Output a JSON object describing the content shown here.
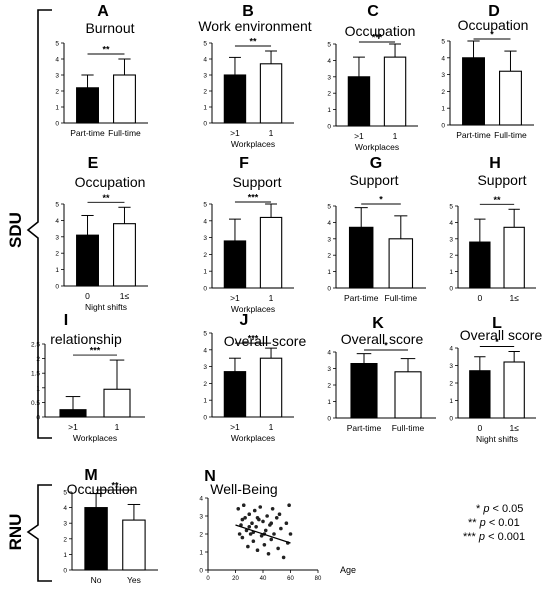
{
  "groups": [
    {
      "label": "SDU"
    },
    {
      "label": "RNU"
    }
  ],
  "legend": {
    "p05": {
      "stars": "*",
      "p": "p",
      "rest": "< 0.05"
    },
    "p01": {
      "stars": "**",
      "p": "p",
      "rest": "< 0.01"
    },
    "p001": {
      "stars": "***",
      "p": "p",
      "rest": "< 0.001"
    }
  },
  "chart_data": [
    {
      "panel": "A",
      "title": "Burnout",
      "type": "bar",
      "categories": [
        "Part-time",
        "Full-time"
      ],
      "values": [
        2.2,
        3.0
      ],
      "errors": [
        0.8,
        1.0
      ],
      "ylim": [
        0,
        5
      ],
      "yticks": [
        0,
        1,
        2,
        3,
        4,
        5
      ],
      "sig": "**",
      "xlabel": ""
    },
    {
      "panel": "B",
      "title": "Work environment",
      "type": "bar",
      "categories": [
        ">1",
        "1"
      ],
      "values": [
        3.0,
        3.7
      ],
      "errors": [
        1.1,
        0.8
      ],
      "ylim": [
        0,
        5
      ],
      "yticks": [
        0,
        1,
        2,
        3,
        4,
        5
      ],
      "sig": "**",
      "xlabel": "Workplaces"
    },
    {
      "panel": "C",
      "title": "Occupation",
      "type": "bar",
      "categories": [
        ">1",
        "1"
      ],
      "values": [
        3.0,
        4.2
      ],
      "errors": [
        1.2,
        0.9
      ],
      "ylim": [
        0,
        5
      ],
      "yticks": [
        0,
        1,
        2,
        3,
        4,
        5
      ],
      "sig": "***",
      "xlabel": "Workplaces"
    },
    {
      "panel": "D",
      "title": "Occupation",
      "type": "bar",
      "categories": [
        "Part-time",
        "Full-time"
      ],
      "values": [
        4.0,
        3.2
      ],
      "errors": [
        1.0,
        1.2
      ],
      "ylim": [
        0,
        5
      ],
      "yticks": [
        0,
        1,
        2,
        3,
        4,
        5
      ],
      "sig": "*",
      "xlabel": ""
    },
    {
      "panel": "E",
      "title": "Occupation",
      "type": "bar",
      "categories": [
        "0",
        "1≤"
      ],
      "values": [
        3.1,
        3.8
      ],
      "errors": [
        1.2,
        1.0
      ],
      "ylim": [
        0,
        5
      ],
      "yticks": [
        0,
        1,
        2,
        3,
        4,
        5
      ],
      "sig": "**",
      "xlabel": "Night shifts"
    },
    {
      "panel": "F",
      "title": "Support",
      "type": "bar",
      "categories": [
        ">1",
        "1"
      ],
      "values": [
        2.8,
        4.2
      ],
      "errors": [
        1.3,
        0.8
      ],
      "ylim": [
        0,
        5
      ],
      "yticks": [
        0,
        1,
        2,
        3,
        4,
        5
      ],
      "sig": "***",
      "xlabel": "Workplaces"
    },
    {
      "panel": "G",
      "title": "Support",
      "type": "bar",
      "categories": [
        "Part-time",
        "Full-time"
      ],
      "values": [
        3.7,
        3.0
      ],
      "errors": [
        1.2,
        1.4
      ],
      "ylim": [
        0,
        5
      ],
      "yticks": [
        0,
        1,
        2,
        3,
        4,
        5
      ],
      "sig": "*",
      "xlabel": ""
    },
    {
      "panel": "H",
      "title": "Support",
      "type": "bar",
      "categories": [
        "0",
        "1≤"
      ],
      "values": [
        2.8,
        3.7
      ],
      "errors": [
        1.4,
        1.1
      ],
      "ylim": [
        0,
        5
      ],
      "yticks": [
        0,
        1,
        2,
        3,
        4,
        5
      ],
      "sig": "**",
      "xlabel": ""
    },
    {
      "panel": "I",
      "title": "relationship",
      "type": "bar",
      "categories": [
        ">1",
        "1"
      ],
      "values": [
        0.25,
        0.95
      ],
      "errors": [
        0.45,
        1.0
      ],
      "ylim": [
        0,
        2.5
      ],
      "yticks": [
        0.0,
        0.5,
        1.0,
        1.5,
        2.0,
        2.5
      ],
      "sig": "***",
      "xlabel": "Workplaces"
    },
    {
      "panel": "J",
      "title": "Overall score",
      "type": "bar",
      "categories": [
        ">1",
        "1"
      ],
      "values": [
        2.7,
        3.5
      ],
      "errors": [
        0.8,
        0.6
      ],
      "ylim": [
        0,
        5
      ],
      "yticks": [
        0,
        1,
        2,
        3,
        4,
        5
      ],
      "sig": "***",
      "xlabel": "Workplaces"
    },
    {
      "panel": "K",
      "title": "Overall score",
      "type": "bar",
      "categories": [
        "Part-time",
        "Full-time"
      ],
      "values": [
        3.3,
        2.8
      ],
      "errors": [
        0.6,
        0.8
      ],
      "ylim": [
        0,
        4
      ],
      "yticks": [
        0,
        1,
        2,
        3,
        4
      ],
      "sig": "*",
      "xlabel": ""
    },
    {
      "panel": "L",
      "title": "Overall score",
      "type": "bar",
      "categories": [
        "0",
        "1≤"
      ],
      "values": [
        2.7,
        3.2
      ],
      "errors": [
        0.8,
        0.6
      ],
      "ylim": [
        0,
        4
      ],
      "yticks": [
        0,
        1,
        2,
        3,
        4
      ],
      "sig": "*",
      "xlabel": "Night shifts"
    },
    {
      "panel": "M",
      "title": "Occupation",
      "type": "bar",
      "categories": [
        "No",
        "Yes"
      ],
      "values": [
        4.0,
        3.2
      ],
      "errors": [
        0.9,
        1.0
      ],
      "ylim": [
        0,
        5
      ],
      "yticks": [
        0,
        1,
        2,
        3,
        4,
        5
      ],
      "sig": "**",
      "xlabel": ""
    },
    {
      "panel": "N",
      "title": "Well-Being",
      "type": "scatter",
      "xlabel": "Age",
      "xlim": [
        0,
        80
      ],
      "ylim": [
        0,
        4
      ],
      "xticks": [
        0,
        20,
        40,
        60,
        80
      ],
      "yticks": [
        0,
        1,
        2,
        3,
        4
      ],
      "points": [
        [
          22,
          3.4
        ],
        [
          24,
          2.5
        ],
        [
          25,
          1.8
        ],
        [
          26,
          3.6
        ],
        [
          27,
          2.9
        ],
        [
          28,
          2.2
        ],
        [
          29,
          1.3
        ],
        [
          30,
          3.1
        ],
        [
          31,
          2.0
        ],
        [
          32,
          2.6
        ],
        [
          33,
          1.6
        ],
        [
          34,
          3.3
        ],
        [
          35,
          2.4
        ],
        [
          36,
          1.1
        ],
        [
          37,
          2.8
        ],
        [
          38,
          3.5
        ],
        [
          39,
          1.9
        ],
        [
          40,
          2.7
        ],
        [
          41,
          1.4
        ],
        [
          42,
          2.2
        ],
        [
          43,
          3.0
        ],
        [
          44,
          0.9
        ],
        [
          45,
          2.5
        ],
        [
          46,
          1.7
        ],
        [
          47,
          3.4
        ],
        [
          48,
          2.0
        ],
        [
          50,
          2.9
        ],
        [
          51,
          1.2
        ],
        [
          52,
          3.1
        ],
        [
          53,
          2.3
        ],
        [
          55,
          0.7
        ],
        [
          57,
          2.6
        ],
        [
          58,
          1.5
        ],
        [
          59,
          3.6
        ],
        [
          60,
          2.0
        ],
        [
          23,
          2.0
        ],
        [
          30,
          2.4
        ],
        [
          36,
          2.9
        ],
        [
          41,
          2.0
        ],
        [
          46,
          2.6
        ],
        [
          25,
          2.8
        ],
        [
          33,
          2.1
        ]
      ],
      "trend": [
        [
          20,
          2.5
        ],
        [
          60,
          1.5
        ]
      ]
    }
  ]
}
